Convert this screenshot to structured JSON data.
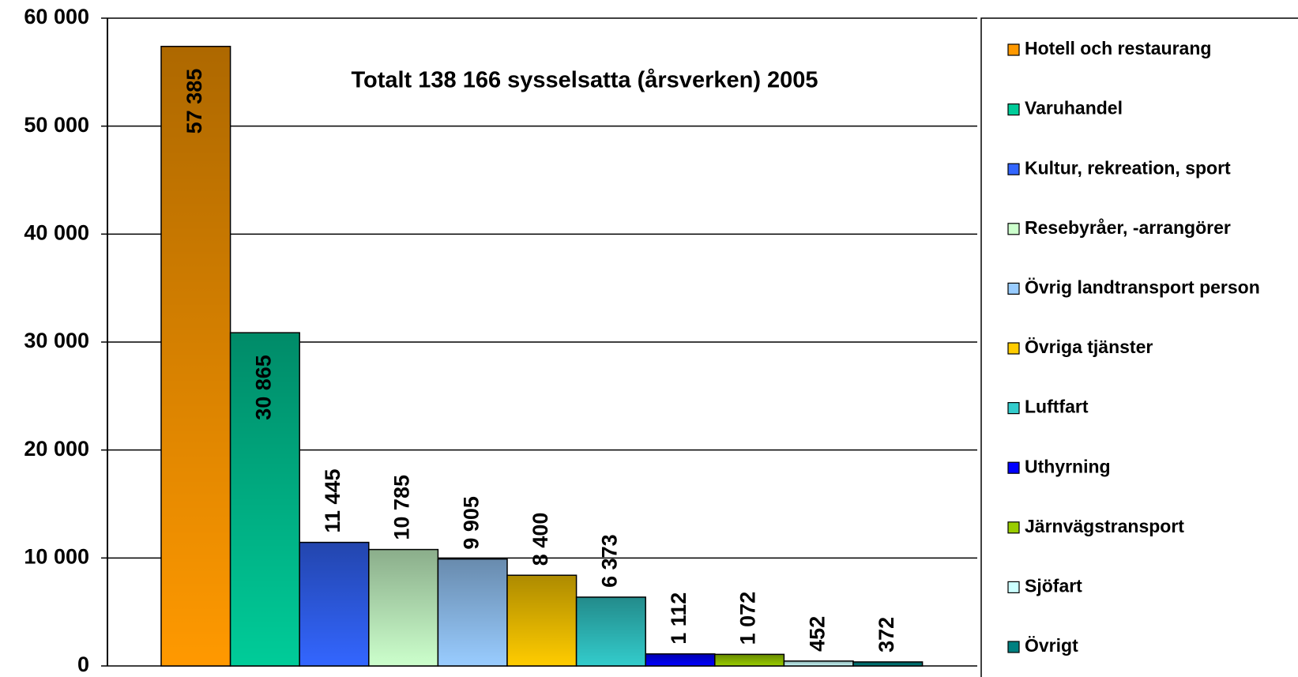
{
  "chart_data": {
    "type": "bar",
    "title": "Totalt 138 166 sysselsatta (årsverken) 2005",
    "categories": [
      "Hotell och restaurang",
      "Varuhandel",
      "Kultur, rekreation, sport",
      "Resebyråer, -arrangörer",
      "Övrig landtransport person",
      "Övriga tjänster",
      "Luftfart",
      "Uthyrning",
      "Järnvägstransport",
      "Sjöfart",
      "Övrigt"
    ],
    "values": [
      57385,
      30865,
      11445,
      10785,
      9905,
      8400,
      6373,
      1112,
      1072,
      452,
      372
    ],
    "value_labels": [
      "57 385",
      "30 865",
      "11 445",
      "10 785",
      "9 905",
      "8 400",
      "6 373",
      "1 112",
      "1 072",
      "452",
      "372"
    ],
    "colors": [
      "#ff9900",
      "#00cc99",
      "#3366ff",
      "#ccffcc",
      "#99ccff",
      "#ffcc00",
      "#33cccc",
      "#0000ff",
      "#99cc00",
      "#ccffff",
      "#008080"
    ],
    "ylim": [
      0,
      60000
    ],
    "yticks": [
      {
        "value": 0,
        "label": "0"
      },
      {
        "value": 10000,
        "label": "10 000"
      },
      {
        "value": 20000,
        "label": "20 000"
      },
      {
        "value": 30000,
        "label": "30 000"
      },
      {
        "value": 40000,
        "label": "40 000"
      },
      {
        "value": 50000,
        "label": "50 000"
      },
      {
        "value": 60000,
        "label": "60 000"
      }
    ],
    "grid": true,
    "legend": "right"
  }
}
